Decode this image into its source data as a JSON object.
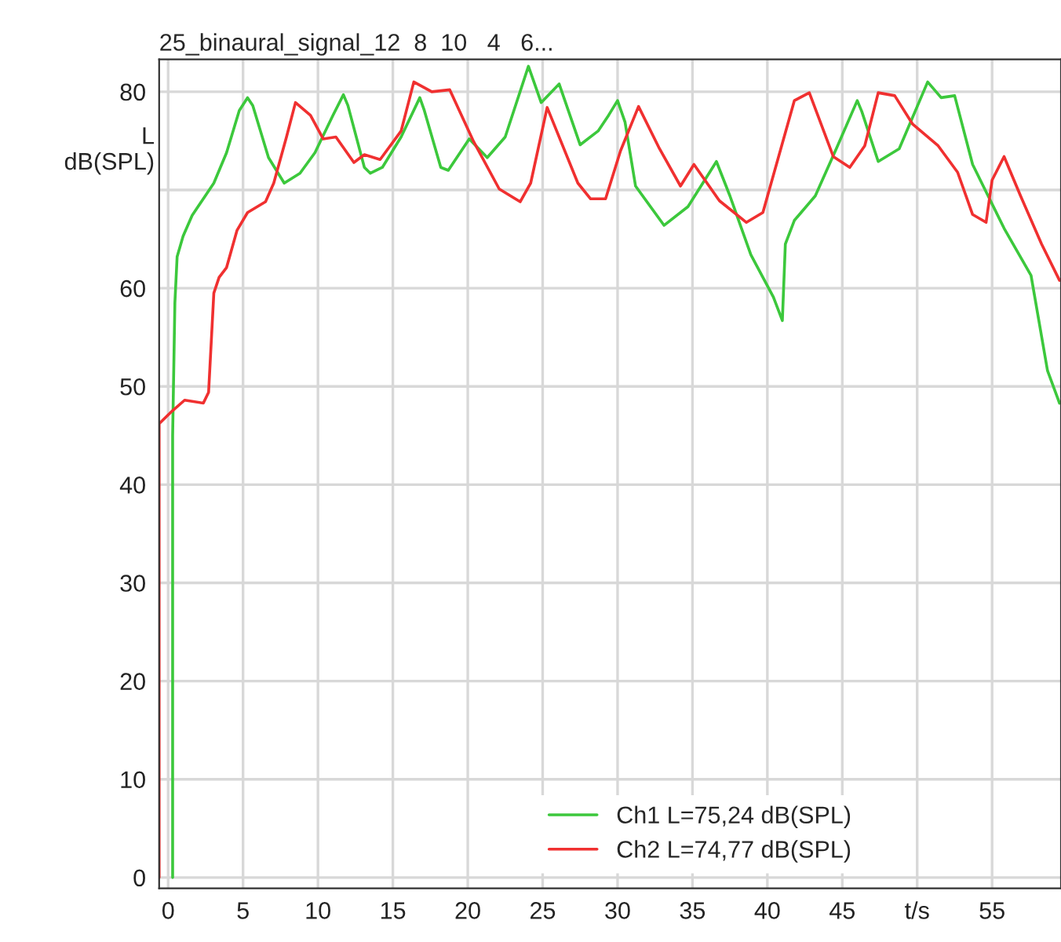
{
  "chart_data": {
    "type": "line",
    "title": "25_binaural_signal_12  8  10   4   6...",
    "ylabel": "L\ndB(SPL)",
    "xlim": [
      -0.6,
      59.6
    ],
    "ylim": [
      -1.1,
      83.3
    ],
    "xticks": [
      0,
      5,
      10,
      15,
      20,
      25,
      30,
      35,
      40,
      45,
      {
        "value": 50,
        "label": "t/s"
      },
      55
    ],
    "yticks": [
      0,
      10,
      20,
      30,
      40,
      50,
      60,
      {
        "value": 70,
        "label": null
      },
      80
    ],
    "grid": true,
    "legend": "bottom",
    "marker": "none",
    "line_style": "solid",
    "series": [
      {
        "name": "Ch1 L=75,24 dB(SPL)",
        "color": "#3cc83c",
        "x": [
          0.3,
          0.3,
          0.45,
          0.6,
          1.0,
          1.6,
          3.05,
          3.9,
          4.75,
          5.3,
          5.65,
          6.7,
          7.75,
          8.8,
          9.8,
          11.0,
          11.7,
          12.0,
          13.1,
          13.5,
          14.3,
          15.55,
          16.8,
          17.1,
          18.2,
          18.7,
          20.1,
          21.3,
          22.5,
          24.05,
          24.9,
          26.1,
          27.5,
          28.7,
          29.4,
          30.0,
          30.5,
          31.2,
          33.1,
          34.7,
          36.6,
          37.5,
          38.9,
          40.4,
          41.0,
          41.2,
          41.8,
          43.2,
          44.6,
          46.0,
          46.3,
          47.4,
          48.8,
          50.7,
          51.6,
          52.5,
          53.7,
          55.8,
          57.6,
          58.7,
          59.5
        ],
        "values": [
          0,
          45,
          58.5,
          63.2,
          65.3,
          67.4,
          70.7,
          73.8,
          78.1,
          79.4,
          78.6,
          73.3,
          70.7,
          71.7,
          73.8,
          77.6,
          79.7,
          78.6,
          72.3,
          71.7,
          72.3,
          75.4,
          79.4,
          78.1,
          72.3,
          72.0,
          75.2,
          73.3,
          75.4,
          82.6,
          78.9,
          80.8,
          74.6,
          76.0,
          77.6,
          79.1,
          76.9,
          70.4,
          66.4,
          68.3,
          72.9,
          69.4,
          63.4,
          59.1,
          56.7,
          64.5,
          66.9,
          69.4,
          74.2,
          79.1,
          78.0,
          72.9,
          74.2,
          81.0,
          79.4,
          79.6,
          72.6,
          66.1,
          61.3,
          51.6,
          48.3
        ]
      },
      {
        "name": "Ch2 L=74,77 dB(SPL)",
        "color": "#f03030",
        "x": [
          -0.6,
          -0.6,
          0.27,
          1.1,
          2.35,
          2.7,
          3.05,
          3.4,
          3.9,
          4.6,
          5.3,
          6.5,
          7.05,
          7.9,
          8.5,
          9.5,
          10.35,
          11.2,
          12.4,
          13.1,
          14.15,
          15.55,
          16.4,
          17.6,
          18.8,
          20.4,
          22.1,
          23.5,
          24.2,
          25.3,
          27.35,
          28.2,
          29.2,
          30.2,
          31.4,
          32.8,
          34.2,
          35.1,
          36.8,
          38.6,
          39.7,
          41.8,
          42.8,
          44.4,
          45.5,
          46.5,
          47.4,
          48.5,
          49.7,
          51.4,
          52.7,
          53.7,
          54.6,
          55.0,
          55.8,
          56.9,
          58.3,
          59.5
        ],
        "values": [
          0,
          46.2,
          47.5,
          48.6,
          48.3,
          49.4,
          59.5,
          61.1,
          62.1,
          65.9,
          67.7,
          68.8,
          70.7,
          75.4,
          78.9,
          77.6,
          75.2,
          75.4,
          72.8,
          73.6,
          73.1,
          76.0,
          81.0,
          80.0,
          80.2,
          74.9,
          70.1,
          68.8,
          70.7,
          78.4,
          70.7,
          69.1,
          69.1,
          74.0,
          78.5,
          74.2,
          70.4,
          72.6,
          68.9,
          66.7,
          67.7,
          79.1,
          79.9,
          73.4,
          72.3,
          74.5,
          79.9,
          79.6,
          76.7,
          74.5,
          71.8,
          67.5,
          66.7,
          71.0,
          73.4,
          69.4,
          64.5,
          60.8
        ]
      }
    ]
  }
}
